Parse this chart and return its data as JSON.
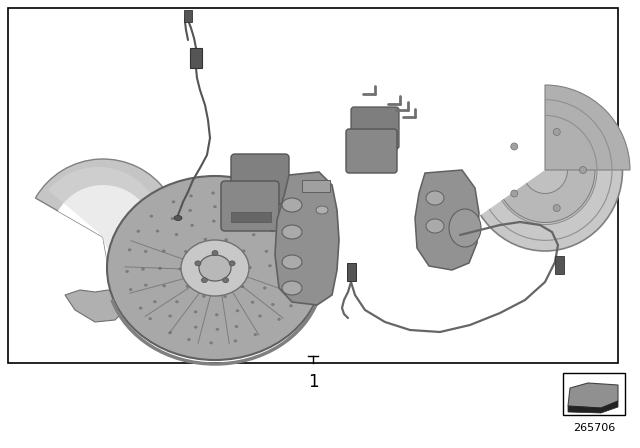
{
  "background_color": "#ffffff",
  "border_color": "#000000",
  "part_number": "265706",
  "label_number": "1",
  "gray_light": "#d0d0d0",
  "gray_mid": "#aaaaaa",
  "gray_dark": "#707070",
  "gray_silver": "#c0c0c0",
  "gray_deep": "#888888",
  "gray_shield": "#b8b8b8",
  "wire_color": "#555555",
  "rotor_face": "#b0b0b0",
  "rotor_edge": "#909090",
  "rotor_hat": "#c8c8c8",
  "caliper_body": "#909090",
  "pad_color": "#808080",
  "rear_shield_color": "#c5c5c5"
}
